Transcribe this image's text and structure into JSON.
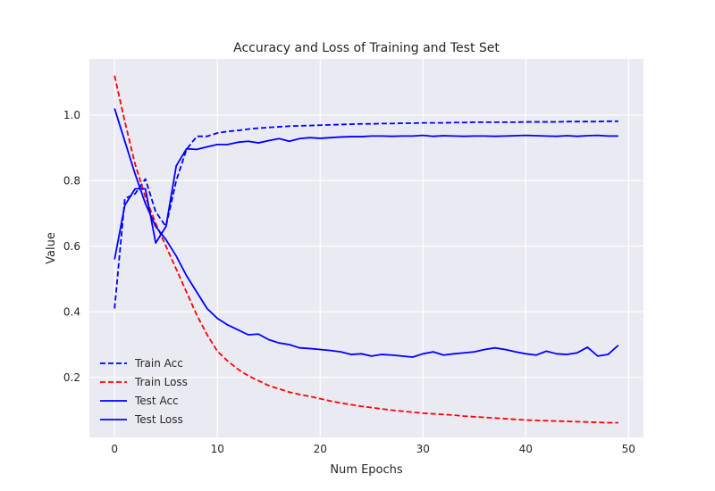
{
  "chart_data": {
    "type": "line",
    "title": "Accuracy and Loss of Training and Test Set",
    "xlabel": "Num Epochs",
    "ylabel": "Value",
    "xlim": [
      -2.45,
      51.45
    ],
    "ylim": [
      0.017,
      1.171
    ],
    "xticks": [
      0,
      10,
      20,
      30,
      40,
      50
    ],
    "yticks": [
      0.2,
      0.4,
      0.6,
      0.8,
      1.0
    ],
    "xtick_labels": [
      "0",
      "10",
      "20",
      "30",
      "40",
      "50"
    ],
    "ytick_labels": [
      "0.2",
      "0.4",
      "0.6",
      "0.8",
      "1.0"
    ],
    "grid": true,
    "legend_position": "lower-left",
    "background": "#eaeaf2",
    "x": [
      0,
      1,
      2,
      3,
      4,
      5,
      6,
      7,
      8,
      9,
      10,
      11,
      12,
      13,
      14,
      15,
      16,
      17,
      18,
      19,
      20,
      21,
      22,
      23,
      24,
      25,
      26,
      27,
      28,
      29,
      30,
      31,
      32,
      33,
      34,
      35,
      36,
      37,
      38,
      39,
      40,
      41,
      42,
      43,
      44,
      45,
      46,
      47,
      48,
      49
    ],
    "series": [
      {
        "name": "Train Acc",
        "color": "#0000ff",
        "dash": "dashed",
        "values": [
          0.41,
          0.745,
          0.76,
          0.805,
          0.705,
          0.66,
          0.8,
          0.895,
          0.935,
          0.935,
          0.945,
          0.95,
          0.953,
          0.957,
          0.96,
          0.962,
          0.964,
          0.966,
          0.967,
          0.968,
          0.969,
          0.97,
          0.971,
          0.972,
          0.973,
          0.973,
          0.974,
          0.974,
          0.975,
          0.975,
          0.976,
          0.976,
          0.976,
          0.977,
          0.977,
          0.978,
          0.978,
          0.978,
          0.978,
          0.978,
          0.979,
          0.979,
          0.979,
          0.979,
          0.98,
          0.98,
          0.98,
          0.98,
          0.981,
          0.981
        ]
      },
      {
        "name": "Train Loss",
        "color": "#ff0000",
        "dash": "dashed",
        "values": [
          1.12,
          0.98,
          0.85,
          0.75,
          0.67,
          0.6,
          0.53,
          0.46,
          0.39,
          0.33,
          0.28,
          0.25,
          0.225,
          0.205,
          0.19,
          0.175,
          0.165,
          0.155,
          0.148,
          0.142,
          0.135,
          0.128,
          0.122,
          0.117,
          0.112,
          0.108,
          0.104,
          0.1,
          0.097,
          0.094,
          0.091,
          0.089,
          0.087,
          0.085,
          0.082,
          0.08,
          0.078,
          0.076,
          0.074,
          0.072,
          0.07,
          0.069,
          0.068,
          0.067,
          0.066,
          0.065,
          0.064,
          0.063,
          0.062,
          0.062
        ]
      },
      {
        "name": "Test Acc",
        "color": "#0000ff",
        "dash": "solid",
        "values": [
          0.56,
          0.725,
          0.775,
          0.775,
          0.61,
          0.66,
          0.845,
          0.897,
          0.895,
          0.903,
          0.91,
          0.91,
          0.917,
          0.92,
          0.915,
          0.922,
          0.928,
          0.92,
          0.928,
          0.931,
          0.929,
          0.931,
          0.933,
          0.934,
          0.934,
          0.936,
          0.936,
          0.935,
          0.936,
          0.936,
          0.938,
          0.935,
          0.937,
          0.936,
          0.935,
          0.936,
          0.936,
          0.935,
          0.936,
          0.937,
          0.938,
          0.937,
          0.936,
          0.935,
          0.937,
          0.935,
          0.937,
          0.938,
          0.936,
          0.936
        ]
      },
      {
        "name": "Test Loss",
        "color": "#0000ff",
        "dash": "solid",
        "values": [
          1.02,
          0.92,
          0.82,
          0.73,
          0.66,
          0.62,
          0.57,
          0.51,
          0.46,
          0.41,
          0.38,
          0.36,
          0.345,
          0.33,
          0.332,
          0.315,
          0.305,
          0.3,
          0.29,
          0.288,
          0.285,
          0.282,
          0.278,
          0.27,
          0.272,
          0.265,
          0.27,
          0.268,
          0.265,
          0.262,
          0.272,
          0.278,
          0.268,
          0.272,
          0.275,
          0.278,
          0.285,
          0.29,
          0.285,
          0.278,
          0.272,
          0.268,
          0.28,
          0.272,
          0.27,
          0.275,
          0.292,
          0.265,
          0.27,
          0.298
        ]
      }
    ]
  }
}
